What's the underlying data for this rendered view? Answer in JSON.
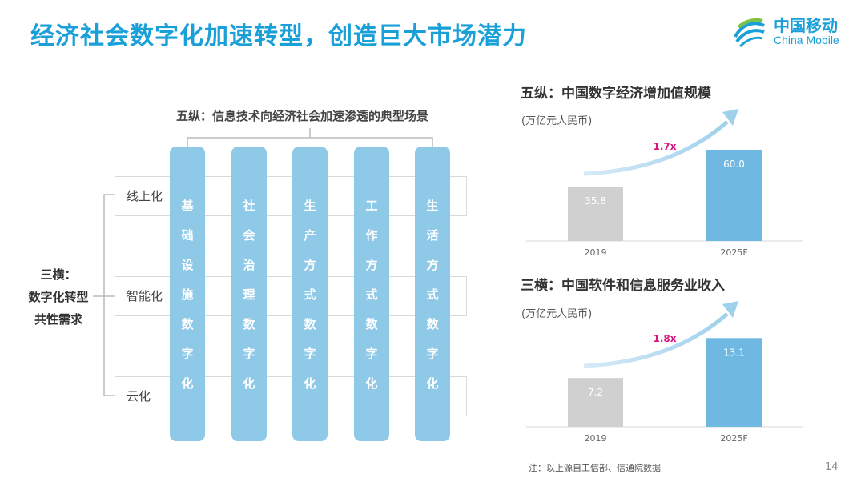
{
  "title": "经济社会数字化加速转型，创造巨大市场潜力",
  "logo": {
    "cn": "中国移动",
    "en": "China Mobile"
  },
  "diagram": {
    "columns_title": "五纵：信息技术向经济社会加速渗透的典型场景",
    "rows": [
      "线上化",
      "智能化",
      "云化"
    ],
    "left_label": [
      "三横：",
      "数字化转型",
      "共性需求"
    ],
    "columns": [
      {
        "chars": [
          "基",
          "础",
          "设",
          "施",
          "数",
          "字",
          "化"
        ]
      },
      {
        "chars": [
          "社",
          "会",
          "治",
          "理",
          "数",
          "字",
          "化"
        ]
      },
      {
        "chars": [
          "生",
          "产",
          "方",
          "式",
          "数",
          "字",
          "化"
        ]
      },
      {
        "chars": [
          "工",
          "作",
          "方",
          "式",
          "数",
          "字",
          "化"
        ]
      },
      {
        "chars": [
          "生",
          "活",
          "方",
          "式",
          "数",
          "字",
          "化"
        ]
      }
    ]
  },
  "panel1": {
    "title": "五纵：中国数字经济增加值规模",
    "unit": "(万亿元人民币)"
  },
  "panel2": {
    "title": "三横：中国软件和信息服务业收入",
    "unit": "(万亿元人民币)"
  },
  "chart_data": [
    {
      "type": "bar",
      "categories": [
        "2019",
        "2025F"
      ],
      "values": [
        35.8,
        60.0
      ],
      "value_labels": [
        "35.8",
        "60.0"
      ],
      "colors": [
        "#d0d0d0",
        "#6fb8e2"
      ],
      "growth_label": "1.7x",
      "ylim": [
        0,
        70
      ]
    },
    {
      "type": "bar",
      "categories": [
        "2019",
        "2025F"
      ],
      "values": [
        7.2,
        13.1
      ],
      "value_labels": [
        "7.2",
        "13.1"
      ],
      "colors": [
        "#d0d0d0",
        "#6fb8e2"
      ],
      "growth_label": "1.8x",
      "ylim": [
        0,
        15.5
      ]
    }
  ],
  "note": "注：以上源自工信部、信通院数据",
  "page_number": "14",
  "colors": {
    "accent": "#1aa0d8",
    "column": "#8ec9e8",
    "bar_2019": "#d0d0d0",
    "bar_2025": "#6fb8e2",
    "growth": "#d6157f"
  }
}
